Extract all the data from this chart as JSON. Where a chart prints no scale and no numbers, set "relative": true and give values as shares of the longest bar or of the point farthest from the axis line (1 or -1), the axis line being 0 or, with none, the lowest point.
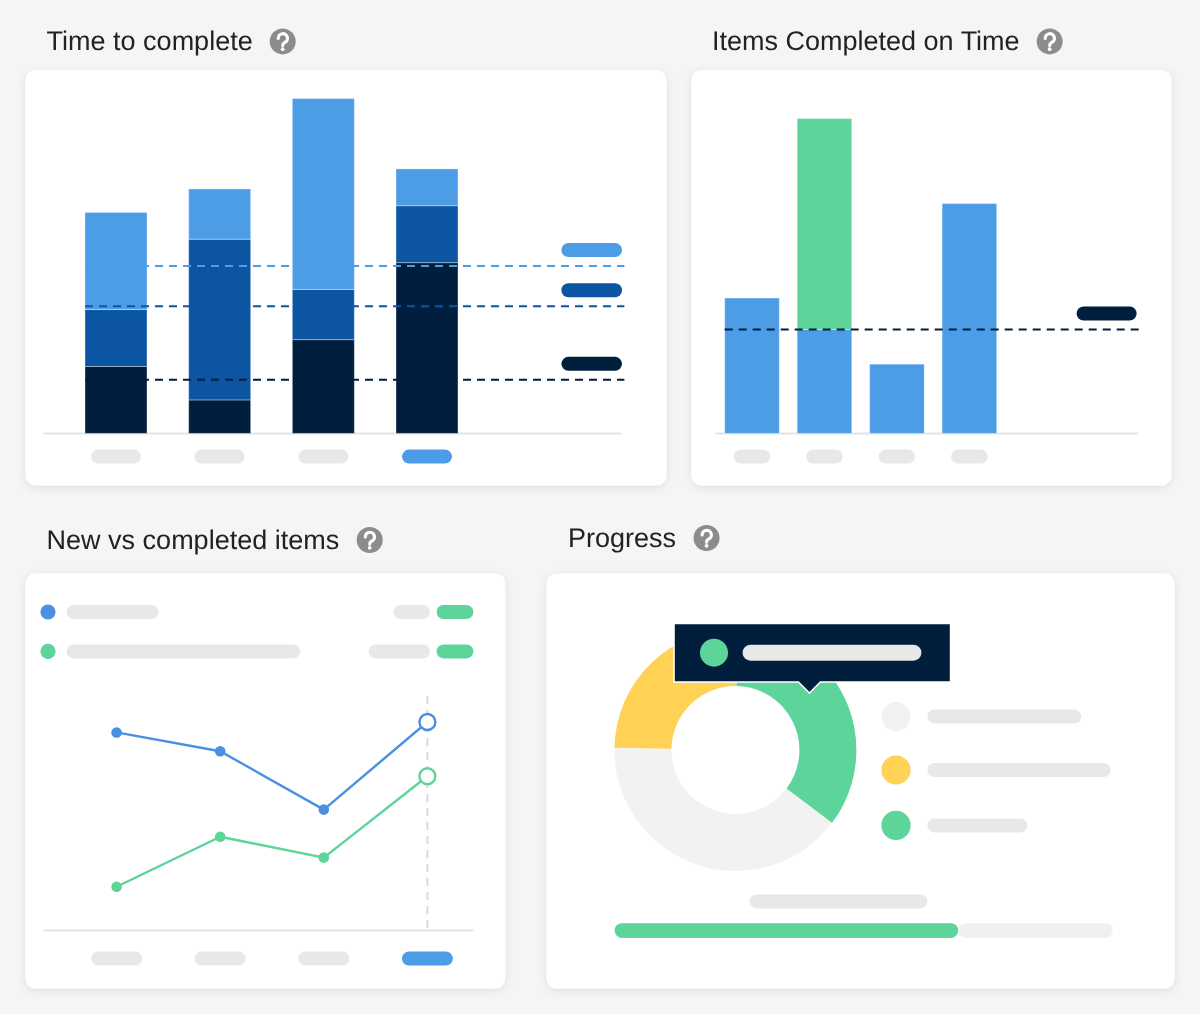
{
  "chart_data": [
    {
      "type": "bar",
      "title": "Time to complete",
      "stacked": true,
      "relative": true,
      "categories": [
        null,
        null,
        null,
        null
      ],
      "series": [
        {
          "color": "#001e3d",
          "values": [
            0.2,
            0.1,
            0.28,
            0.51
          ]
        },
        {
          "color": "#0b55a3",
          "values": [
            0.17,
            0.48,
            0.15,
            0.17
          ]
        },
        {
          "color": "#4d9de6",
          "values": [
            0.29,
            0.15,
            0.57,
            0.11
          ]
        }
      ],
      "ref_lines": [
        {
          "axis": "y",
          "value": 0.5,
          "color": "#4d9de6",
          "line_style": "dashed"
        },
        {
          "axis": "y",
          "value": 0.38,
          "color": "#0b55a3",
          "line_style": "dashed"
        },
        {
          "axis": "y",
          "value": 0.16,
          "color": "#001e3d",
          "line_style": "dashed"
        }
      ]
    },
    {
      "type": "bar",
      "title": "Items Completed on Time",
      "stacked": true,
      "relative": true,
      "categories": [
        null,
        null,
        null,
        null
      ],
      "series": [
        {
          "color": "#4d9de6",
          "values": [
            0.43,
            0.33,
            0.22,
            0.73
          ]
        },
        {
          "color": "#5cd49a",
          "values": [
            null,
            0.67,
            null,
            null
          ]
        }
      ],
      "ref_lines": [
        {
          "axis": "y",
          "value": 0.33,
          "color": "#001e3d",
          "line_style": "dashed"
        }
      ]
    },
    {
      "type": "line",
      "title": "New vs completed items",
      "relative": true,
      "categories": [
        null,
        null,
        null,
        null
      ],
      "series": [
        {
          "color": "#4a90e2",
          "values": [
            0.95,
            0.86,
            0.58,
            1
          ]
        },
        {
          "color": "#5cd49a",
          "values": [
            0.21,
            0.45,
            0.35,
            0.74
          ]
        }
      ],
      "marker": "circle",
      "line_style": "solid"
    },
    {
      "type": "donut",
      "title": "Progress",
      "categories": [
        null,
        null,
        null
      ],
      "values": [
        40,
        25,
        35
      ],
      "colors": [
        "#f2f2f2",
        "#ffd155",
        "#5cd49a"
      ]
    },
    {
      "type": "bar",
      "orientation": "horizontal",
      "stacked": true,
      "relative": true,
      "categories": [
        null
      ],
      "series": [
        {
          "color": "#5cd49a",
          "values": [
            0.69
          ]
        },
        {
          "color": "#f0f0f0",
          "values": [
            0.31
          ]
        }
      ]
    }
  ]
}
